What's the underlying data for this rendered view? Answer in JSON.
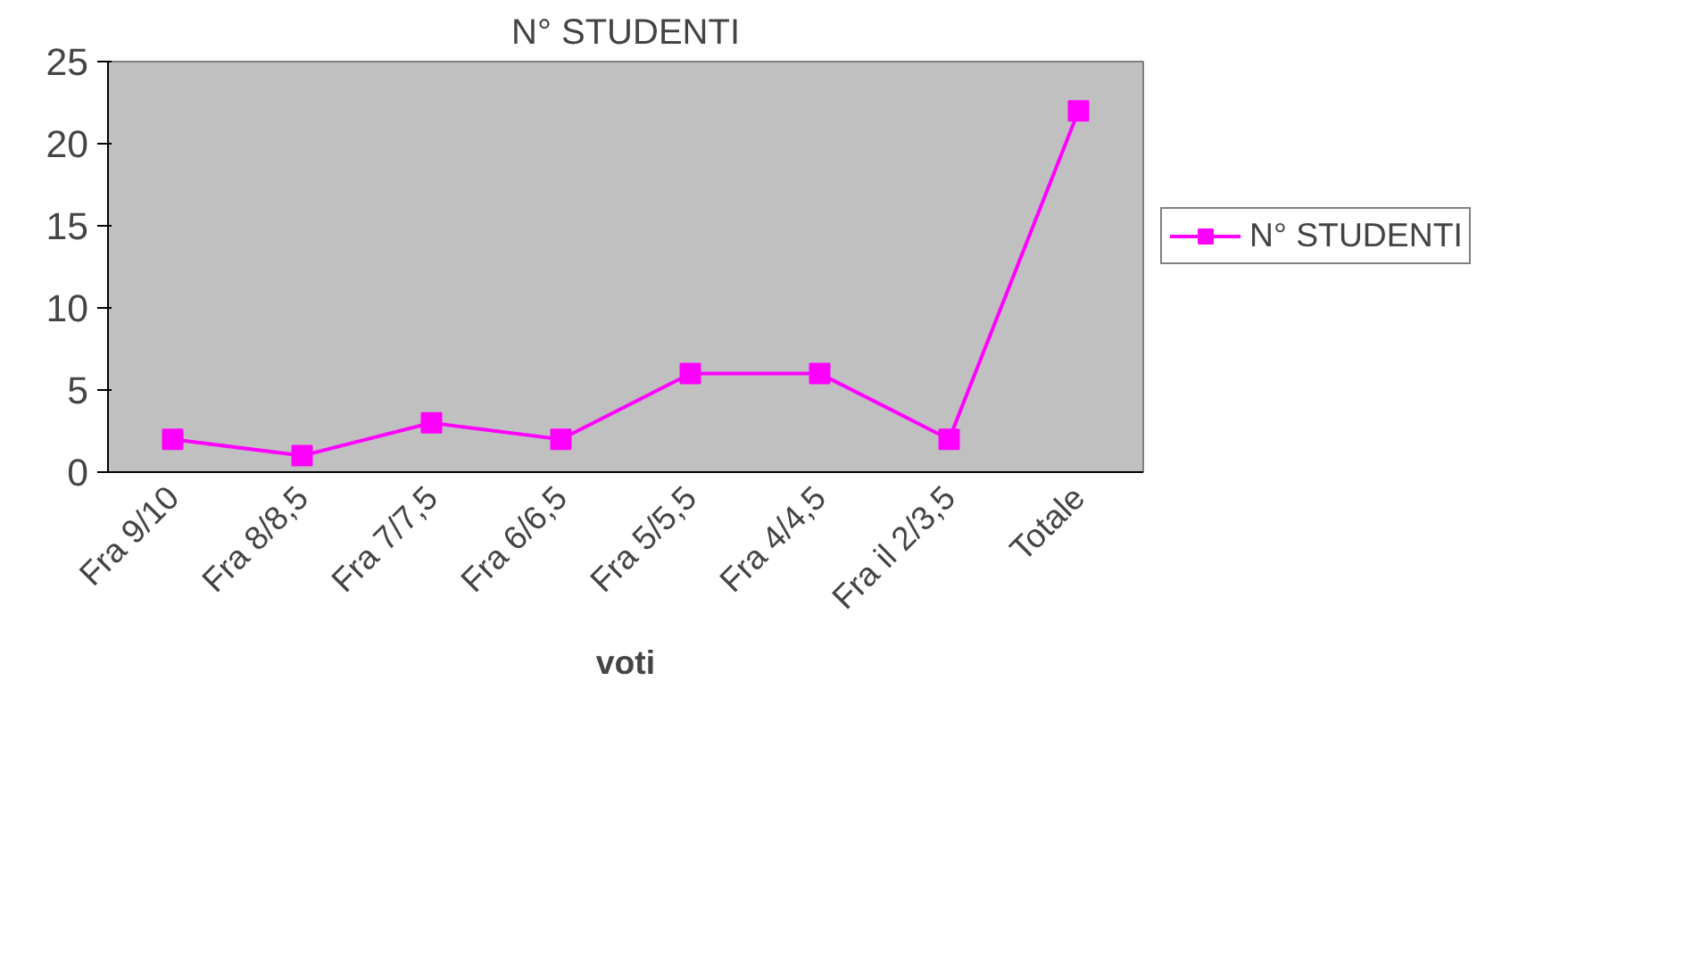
{
  "chart_data": {
    "type": "line",
    "title": "N° STUDENTI",
    "xlabel": "voti",
    "categories": [
      "Fra 9/10",
      "Fra 8/8,5",
      "Fra 7/7,5",
      "Fra 6/6,5",
      "Fra 5/5,5",
      "Fra 4/4,5",
      "Fra il 2/3,5",
      "Totale"
    ],
    "series": [
      {
        "name": "N° STUDENTI",
        "color": "#ff00ff",
        "values": [
          2,
          1,
          3,
          2,
          6,
          6,
          2,
          22
        ]
      }
    ],
    "ylim": [
      0,
      25
    ],
    "yticks": [
      0,
      5,
      10,
      15,
      20,
      25
    ],
    "grid": false,
    "legend": "right",
    "marker": "square",
    "line_style": "solid"
  }
}
